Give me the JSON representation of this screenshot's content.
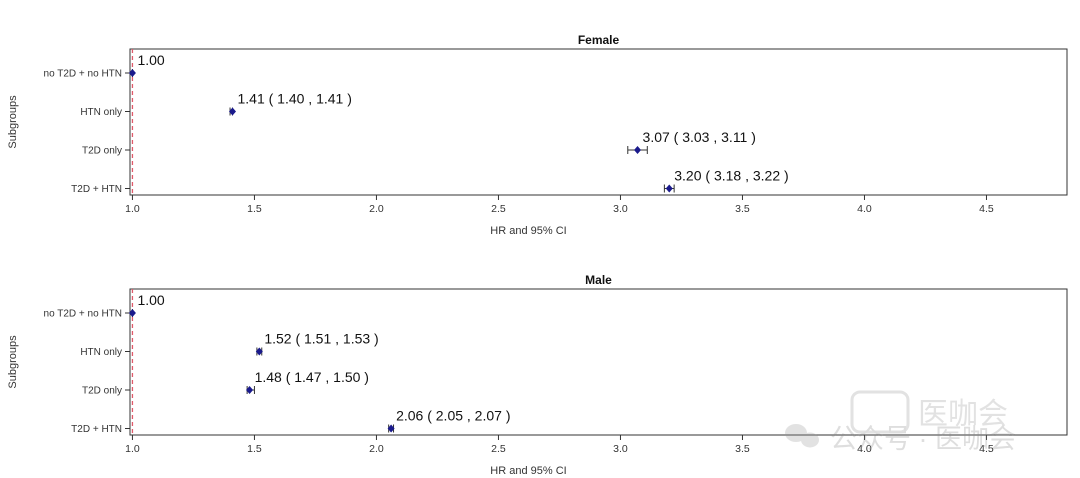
{
  "chart_data": [
    {
      "type": "forest",
      "title": "Female",
      "xlabel": "HR and 95% CI",
      "ylabel": "Subgroups",
      "xlim": [
        0.99,
        4.83
      ],
      "xticks": [
        "1.0",
        "1.5",
        "2.0",
        "2.5",
        "3.0",
        "3.5",
        "4.0",
        "4.5"
      ],
      "reference_line": 1.0,
      "rows": [
        {
          "label": "no T2D + no HTN",
          "hr": 1.0,
          "lo": 1.0,
          "hi": 1.0,
          "text": "1.00"
        },
        {
          "label": "HTN only",
          "hr": 1.41,
          "lo": 1.4,
          "hi": 1.41,
          "text": "1.41 ( 1.40 , 1.41 )"
        },
        {
          "label": "T2D only",
          "hr": 3.07,
          "lo": 3.03,
          "hi": 3.11,
          "text": "3.07 ( 3.03 , 3.11 )"
        },
        {
          "label": "T2D + HTN",
          "hr": 3.2,
          "lo": 3.18,
          "hi": 3.22,
          "text": "3.20 ( 3.18 , 3.22 )"
        }
      ]
    },
    {
      "type": "forest",
      "title": "Male",
      "xlabel": "HR and 95% CI",
      "ylabel": "Subgroups",
      "xlim": [
        0.99,
        4.83
      ],
      "xticks": [
        "1.0",
        "1.5",
        "2.0",
        "2.5",
        "3.0",
        "3.5",
        "4.0",
        "4.5"
      ],
      "reference_line": 1.0,
      "rows": [
        {
          "label": "no T2D + no HTN",
          "hr": 1.0,
          "lo": 1.0,
          "hi": 1.0,
          "text": "1.00"
        },
        {
          "label": "HTN only",
          "hr": 1.52,
          "lo": 1.51,
          "hi": 1.53,
          "text": "1.52 ( 1.51 , 1.53 )"
        },
        {
          "label": "T2D only",
          "hr": 1.48,
          "lo": 1.47,
          "hi": 1.5,
          "text": "1.48 ( 1.47 , 1.50 )"
        },
        {
          "label": "T2D + HTN",
          "hr": 2.06,
          "lo": 2.05,
          "hi": 2.07,
          "text": "2.06 ( 2.05 , 2.07 )"
        }
      ]
    }
  ],
  "colors": {
    "marker": "#1a1a8c",
    "errorbar": "#333333",
    "reference": "#e05a6a",
    "axis": "#333333"
  },
  "watermark": {
    "text": "公众号 · 医咖会",
    "logo_text": "医咖会"
  }
}
